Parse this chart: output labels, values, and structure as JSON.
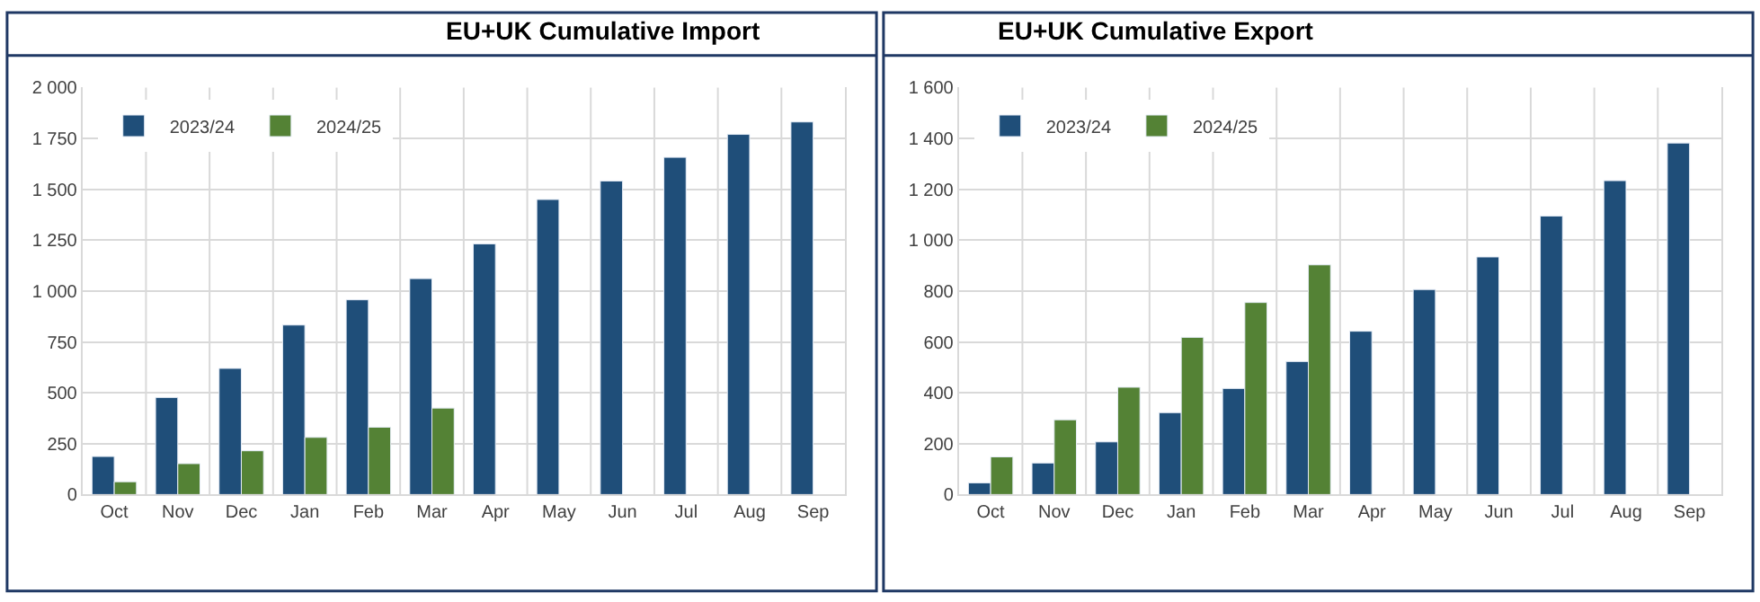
{
  "chart_data": [
    {
      "type": "bar",
      "title": "EU+UK Cumulative Import",
      "categories": [
        "Oct",
        "Nov",
        "Dec",
        "Jan",
        "Feb",
        "Mar",
        "Apr",
        "May",
        "Jun",
        "Jul",
        "Aug",
        "Sep"
      ],
      "series": [
        {
          "name": "2023/24",
          "color": "#1f4e79",
          "values": [
            187,
            477,
            620,
            833,
            957,
            1061,
            1232,
            1450,
            1541,
            1657,
            1770,
            1831
          ]
        },
        {
          "name": "2024/25",
          "color": "#548235",
          "values": [
            63,
            152,
            215,
            281,
            331,
            425,
            null,
            null,
            null,
            null,
            null,
            null
          ]
        }
      ],
      "ylim": [
        0,
        2000
      ],
      "yticks": [
        0,
        250,
        500,
        750,
        {
          "value": 1000,
          "label": "1 000"
        },
        {
          "value": 1250,
          "label": "1 250"
        },
        {
          "value": 1500,
          "label": "1 500"
        },
        {
          "value": 1750,
          "label": "1 750"
        },
        {
          "value": 2000,
          "label": "2 000"
        }
      ],
      "grid": true,
      "legend": "top left"
    },
    {
      "type": "bar",
      "title": "EU+UK Cumulative Export",
      "categories": [
        "Oct",
        "Nov",
        "Dec",
        "Jan",
        "Feb",
        "Mar",
        "Apr",
        "May",
        "Jun",
        "Jul",
        "Aug",
        "Sep"
      ],
      "series": [
        {
          "name": "2023/24",
          "color": "#1f4e79",
          "values": [
            46,
            124,
            207,
            322,
            417,
            523,
            642,
            806,
            934,
            1095,
            1234,
            1382
          ]
        },
        {
          "name": "2024/25",
          "color": "#548235",
          "values": [
            148,
            294,
            422,
            618,
            755,
            903,
            null,
            null,
            null,
            null,
            null,
            null
          ]
        }
      ],
      "ylim": [
        0,
        1600
      ],
      "yticks": [
        0,
        200,
        400,
        600,
        800,
        {
          "value": 1000,
          "label": "1 000"
        },
        {
          "value": 1200,
          "label": "1 200"
        },
        {
          "value": 1400,
          "label": "1 400"
        },
        {
          "value": 1600,
          "label": "1 600"
        }
      ],
      "grid": true,
      "legend": "top left"
    }
  ]
}
